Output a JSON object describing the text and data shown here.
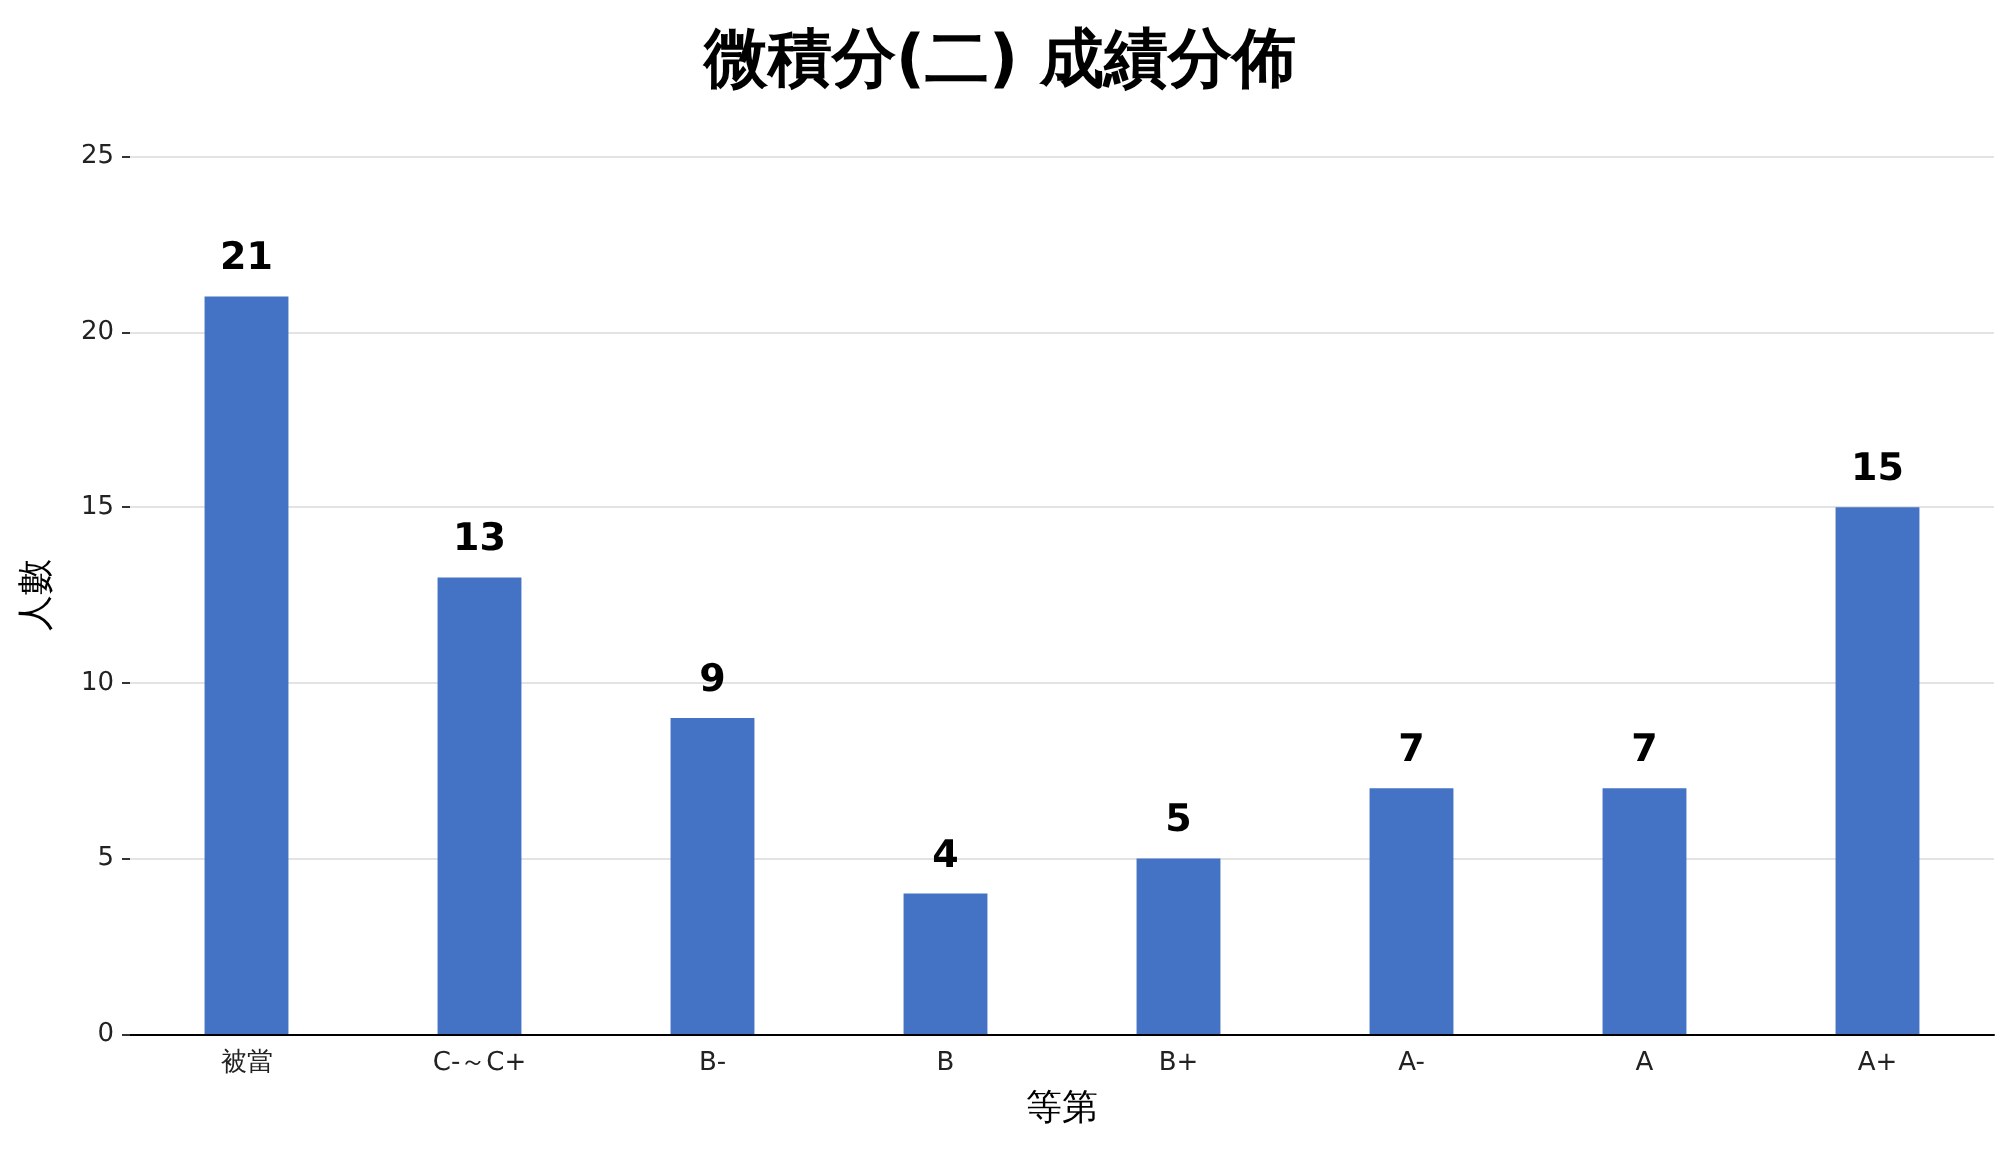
{
  "chart_data": {
    "type": "bar",
    "title": "微積分(二) 成績分佈",
    "xlabel": "等第",
    "ylabel": "人數",
    "categories": [
      "被當",
      "C-～C+",
      "B-",
      "B",
      "B+",
      "A-",
      "A",
      "A+"
    ],
    "values": [
      21,
      13,
      9,
      4,
      5,
      7,
      7,
      15
    ],
    "color": "#4472c4",
    "ylim": [
      0,
      25
    ],
    "yticks": [
      0,
      5,
      10,
      15,
      20,
      25
    ],
    "grid": "y",
    "data_labels": true
  }
}
